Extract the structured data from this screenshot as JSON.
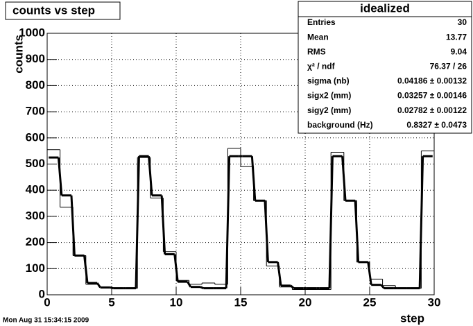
{
  "chart_data": {
    "type": "histogram",
    "title": "counts vs step",
    "xlabel": "step",
    "ylabel": "counts",
    "bins": [
      0,
      1,
      2,
      3,
      4,
      5,
      6,
      7,
      8,
      9,
      10,
      11,
      12,
      13,
      14,
      15,
      16,
      17,
      18,
      19,
      20,
      21,
      22,
      23,
      24,
      25,
      26,
      27,
      28,
      29,
      30
    ],
    "values": [
      555,
      335,
      150,
      40,
      30,
      25,
      25,
      525,
      370,
      165,
      55,
      40,
      45,
      40,
      560,
      490,
      360,
      110,
      30,
      20,
      20,
      20,
      545,
      360,
      125,
      60,
      35,
      25,
      25,
      550
    ],
    "fit_values": [
      525,
      380,
      150,
      45,
      28,
      25,
      25,
      530,
      380,
      155,
      50,
      30,
      25,
      25,
      530,
      530,
      360,
      125,
      35,
      25,
      25,
      25,
      530,
      360,
      125,
      38,
      25,
      25,
      25,
      530
    ],
    "color": "#000000",
    "xlim": [
      0,
      30
    ],
    "ylim": [
      0,
      1000
    ],
    "xticks": [
      0,
      5,
      10,
      15,
      20,
      25,
      30
    ],
    "yticks": [
      0,
      100,
      200,
      300,
      400,
      500,
      600,
      700,
      800,
      900,
      1000
    ],
    "grid": true,
    "stats": {
      "title": "idealized",
      "rows": [
        [
          "Entries",
          "30"
        ],
        [
          "Mean",
          "13.77"
        ],
        [
          "RMS",
          "9.04"
        ],
        [
          "χ² / ndf",
          "76.37 / 26"
        ],
        [
          "sigma (nb)",
          "0.04186 ± 0.00132"
        ],
        [
          "sigx2 (mm)",
          "0.03257 ± 0.00146"
        ],
        [
          "sigy2 (mm)",
          "0.02782 ± 0.00122"
        ],
        [
          "background (Hz)",
          "0.8327 ± 0.0473"
        ]
      ]
    },
    "date": "Mon Aug 31 15:34:15 2009"
  }
}
